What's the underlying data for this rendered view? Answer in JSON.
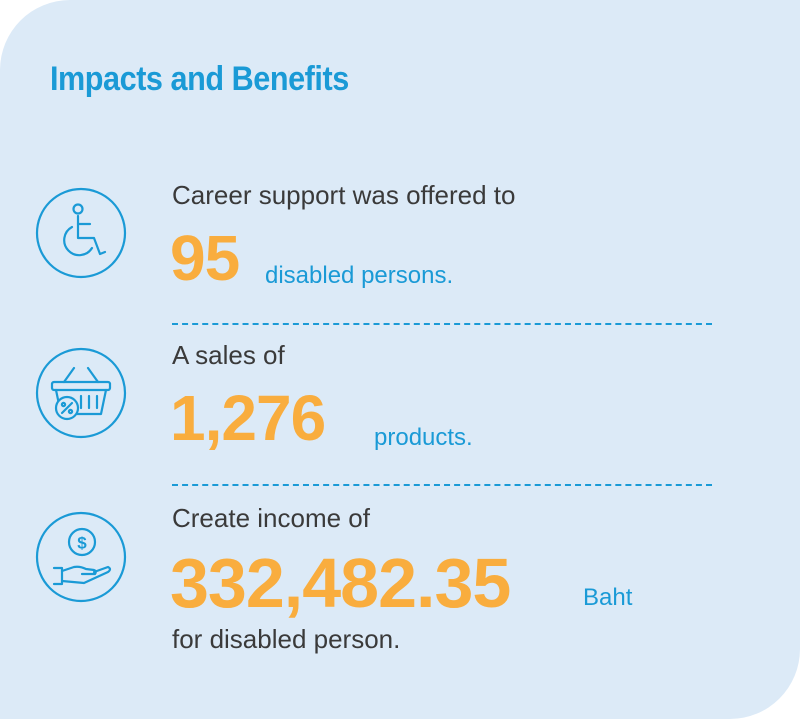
{
  "title": "Impacts and Benefits",
  "items": [
    {
      "icon": "wheelchair-icon",
      "intro": "Career support was offered to",
      "value": "95",
      "unit": "disabled persons."
    },
    {
      "icon": "basket-discount-icon",
      "intro": "A sales of",
      "value": "1,276",
      "unit": "products."
    },
    {
      "icon": "hand-coin-icon",
      "intro": "Create income of",
      "value": "332,482.35",
      "unit": "Baht",
      "outro": "for disabled person."
    }
  ],
  "colors": {
    "background": "#dceaf7",
    "accent_blue": "#1a9ad6",
    "highlight_orange": "#f9ad3e",
    "text": "#3a3a3a"
  }
}
